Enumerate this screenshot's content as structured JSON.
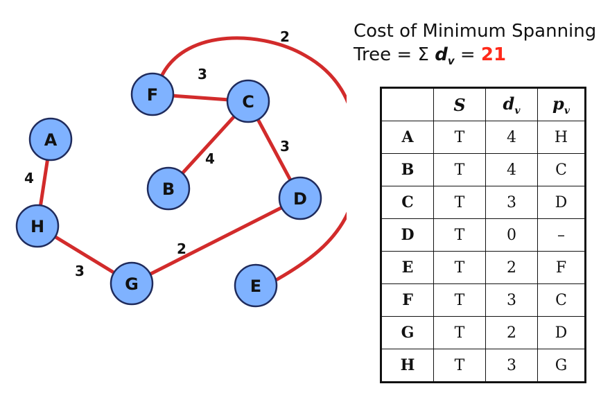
{
  "title": {
    "line1": "Cost of Minimum Spanning",
    "line2_prefix": "Tree = Σ ",
    "dv_symbol": "d",
    "dv_sub": "v",
    "equals": " = ",
    "total": "21",
    "total_color": "#ff2a1a"
  },
  "graph": {
    "edge_color": "#d22b2b",
    "node_color": "#7fb2ff",
    "nodes": [
      "A",
      "B",
      "C",
      "D",
      "E",
      "F",
      "G",
      "H"
    ],
    "edges": [
      {
        "from": "F",
        "to": "C",
        "weight": "3"
      },
      {
        "from": "C",
        "to": "B",
        "weight": "4"
      },
      {
        "from": "C",
        "to": "D",
        "weight": "3"
      },
      {
        "from": "D",
        "to": "G",
        "weight": "2"
      },
      {
        "from": "A",
        "to": "H",
        "weight": "4"
      },
      {
        "from": "H",
        "to": "G",
        "weight": "3"
      },
      {
        "from": "F",
        "to": "E",
        "weight": "2"
      }
    ]
  },
  "table": {
    "headers": {
      "corner": "",
      "s": "S",
      "d": "d",
      "d_sub": "v",
      "p": "p",
      "p_sub": "v"
    },
    "rows": [
      {
        "v": "A",
        "s": "T",
        "d": "4",
        "p": "H"
      },
      {
        "v": "B",
        "s": "T",
        "d": "4",
        "p": "C"
      },
      {
        "v": "C",
        "s": "T",
        "d": "3",
        "p": "D"
      },
      {
        "v": "D",
        "s": "T",
        "d": "0",
        "p": "–"
      },
      {
        "v": "E",
        "s": "T",
        "d": "2",
        "p": "F"
      },
      {
        "v": "F",
        "s": "T",
        "d": "3",
        "p": "C"
      },
      {
        "v": "G",
        "s": "T",
        "d": "2",
        "p": "D"
      },
      {
        "v": "H",
        "s": "T",
        "d": "3",
        "p": "G"
      }
    ]
  }
}
